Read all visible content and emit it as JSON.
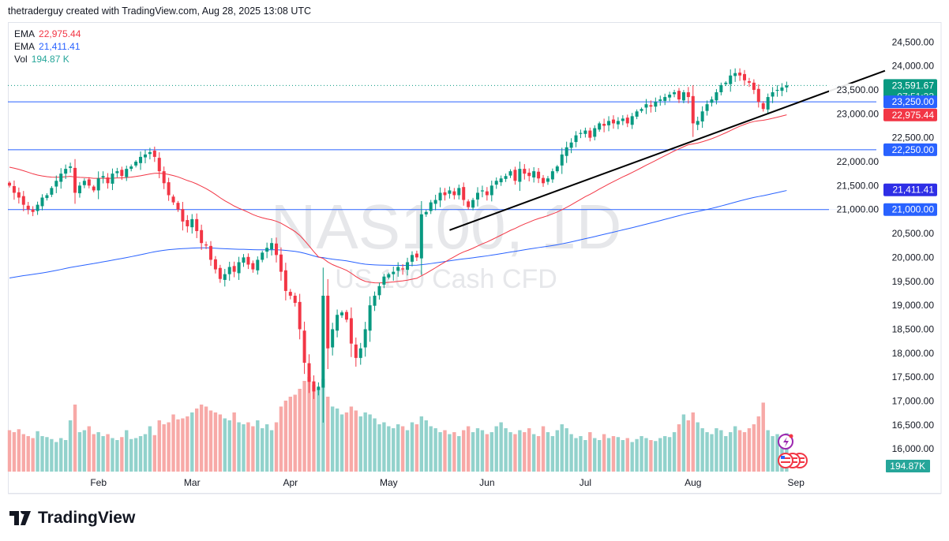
{
  "header": {
    "credit": "thetraderguy created with TradingView.com, Aug 28, 2025 13:08 UTC"
  },
  "legend": [
    {
      "label": "EMA",
      "value": "22,975.44",
      "color": "#f23645"
    },
    {
      "label": "EMA",
      "value": "21,411.41",
      "color": "#2962ff"
    },
    {
      "label": "Vol",
      "value": "194.87 K",
      "color": "#26a69a"
    }
  ],
  "watermark": {
    "symbol": "NAS100, 1D",
    "description": "US 100 Cash CFD"
  },
  "footer": {
    "brand": "TradingView"
  },
  "badges": {
    "price": "23,591.67",
    "countdown": "07:51:33",
    "level1": "23,250.00",
    "ema50": "22,975.44",
    "level2": "22,250.00",
    "ema200": "21,411.41",
    "level3": "21,000.00",
    "volume": "194.87K"
  },
  "colors": {
    "up": "#089981",
    "down": "#f23645",
    "ema50": "#f23645",
    "ema200": "#2962ff",
    "level": "#2962ff",
    "ema200_badge": "#2e2ee6",
    "vol_up": "#92d2cc",
    "vol_down": "#f7a9a7"
  },
  "chart_data": {
    "type": "candlestick",
    "symbol": "NAS100",
    "interval": "1D",
    "y_ticks": [
      "24,500.00",
      "24,000.00",
      "23,500.00",
      "23,000.00",
      "22,500.00",
      "22,000.00",
      "21,500.00",
      "21,000.00",
      "20,500.00",
      "20,000.00",
      "19,500.00",
      "19,000.00",
      "18,500.00",
      "18,000.00",
      "17,500.00",
      "17,000.00",
      "16,500.00",
      "16,000.00"
    ],
    "y_tick_values": [
      24500,
      24000,
      23500,
      23000,
      22500,
      22000,
      21500,
      21000,
      20500,
      20000,
      19500,
      19000,
      18500,
      18000,
      17500,
      17000,
      16500,
      16000
    ],
    "x_ticks": [
      {
        "label": "Feb",
        "bar": 19
      },
      {
        "label": "Mar",
        "bar": 39
      },
      {
        "label": "Apr",
        "bar": 60
      },
      {
        "label": "May",
        "bar": 81
      },
      {
        "label": "Jun",
        "bar": 102
      },
      {
        "label": "Jul",
        "bar": 123
      },
      {
        "label": "Aug",
        "bar": 146
      },
      {
        "label": "Sep",
        "bar": 168
      }
    ],
    "close": [
      21500,
      21350,
      21250,
      21100,
      21000,
      20950,
      21100,
      21250,
      21300,
      21450,
      21600,
      21750,
      21850,
      21900,
      21350,
      21500,
      21600,
      21500,
      21400,
      21650,
      21700,
      21550,
      21750,
      21800,
      21700,
      21850,
      21900,
      22000,
      22100,
      22150,
      22200,
      22100,
      21800,
      21550,
      21300,
      21150,
      21000,
      20750,
      20650,
      20800,
      20550,
      20300,
      20250,
      19950,
      19750,
      19550,
      19650,
      19800,
      19700,
      19900,
      20000,
      19850,
      19750,
      19950,
      20100,
      20200,
      20300,
      20050,
      19700,
      19300,
      19200,
      19050,
      18500,
      17800,
      17400,
      17200,
      17300,
      19200,
      18100,
      18500,
      18800,
      18850,
      18700,
      18200,
      17900,
      18100,
      18500,
      19000,
      19200,
      19400,
      19600,
      19650,
      19700,
      19800,
      19750,
      19900,
      20050,
      20000,
      20900,
      20950,
      21150,
      21200,
      21350,
      21300,
      21400,
      21300,
      21450,
      21200,
      21050,
      21200,
      21350,
      21400,
      21300,
      21500,
      21600,
      21650,
      21700,
      21800,
      21600,
      21850,
      21750,
      21700,
      21800,
      21650,
      21550,
      21650,
      21800,
      21900,
      22150,
      22300,
      22400,
      22550,
      22600,
      22650,
      22500,
      22700,
      22800,
      22750,
      22850,
      22800,
      22850,
      22900,
      22800,
      22950,
      23050,
      23100,
      23200,
      23150,
      23250,
      23300,
      23350,
      23400,
      23450,
      23300,
      23450,
      23350,
      22800,
      22850,
      23050,
      23200,
      23300,
      23450,
      23600,
      23650,
      23800,
      23850,
      23800,
      23700,
      23650,
      23500,
      23250,
      23100,
      23350,
      23450,
      23500,
      23550,
      23591.67
    ],
    "volume_k": [
      210,
      200,
      215,
      190,
      180,
      170,
      205,
      180,
      175,
      165,
      150,
      170,
      160,
      260,
      340,
      200,
      210,
      230,
      190,
      200,
      180,
      190,
      170,
      160,
      175,
      210,
      165,
      170,
      180,
      190,
      230,
      185,
      260,
      240,
      250,
      290,
      265,
      270,
      280,
      300,
      320,
      340,
      330,
      310,
      300,
      290,
      270,
      260,
      300,
      250,
      240,
      250,
      230,
      260,
      220,
      240,
      210,
      250,
      330,
      360,
      380,
      390,
      420,
      460,
      480,
      440,
      420,
      470,
      380,
      330,
      320,
      290,
      300,
      330,
      310,
      280,
      300,
      290,
      270,
      240,
      250,
      230,
      220,
      240,
      230,
      210,
      250,
      240,
      280,
      260,
      230,
      220,
      200,
      210,
      190,
      200,
      180,
      210,
      230,
      200,
      220,
      210,
      190,
      200,
      230,
      250,
      220,
      200,
      190,
      210,
      200,
      220,
      190,
      180,
      230,
      200,
      180,
      210,
      240,
      220,
      190,
      170,
      180,
      160,
      200,
      170,
      160,
      190,
      170,
      180,
      175,
      160,
      170,
      150,
      165,
      180,
      170,
      160,
      155,
      170,
      180,
      175,
      200,
      240,
      290,
      260,
      300,
      250,
      220,
      200,
      190,
      220,
      210,
      180,
      200,
      230,
      210,
      200,
      220,
      240,
      280,
      350,
      210,
      180,
      190,
      170,
      194.87
    ],
    "horizontal_levels": [
      23250,
      22250,
      21000
    ],
    "last_price": 23591.67,
    "ema_last": {
      "ema50": 22975.44,
      "ema200": 21411.41
    },
    "trendline": {
      "from": {
        "bar": 94,
        "price": 20570
      },
      "to": {
        "bar": 187,
        "price": 23900
      }
    },
    "ylim": [
      16000,
      24500
    ]
  }
}
